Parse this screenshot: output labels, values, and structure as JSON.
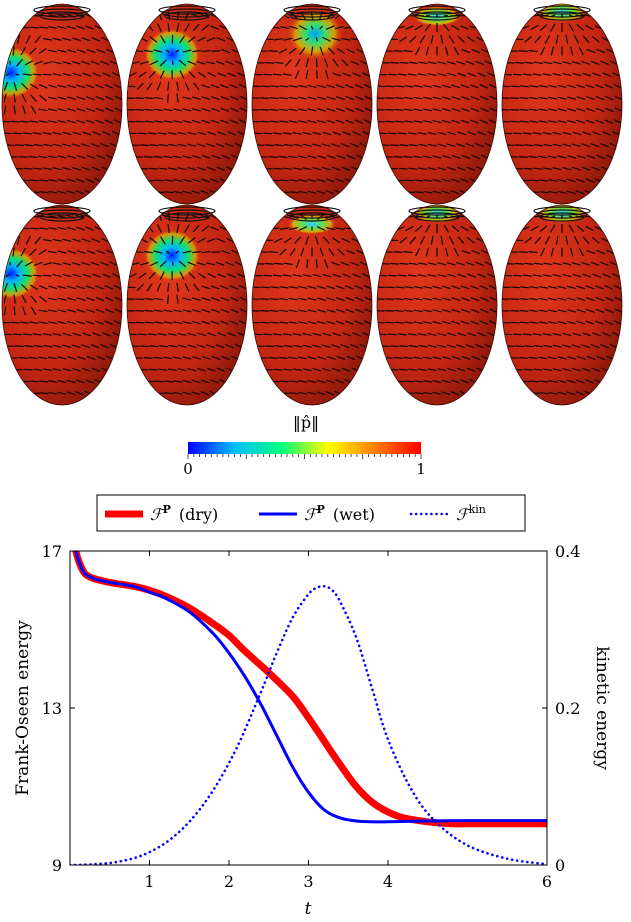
{
  "colorbar": {
    "label": "‖p̂‖",
    "min_label": "0",
    "max_label": "1",
    "colors": [
      "#0000ff",
      "#00bfff",
      "#00ff7f",
      "#ffff00",
      "#ff8000",
      "#ff0000"
    ]
  },
  "spheroid_grid": {
    "rows": 2,
    "cols": 5,
    "base_color": "#cc2a12",
    "rim_color": "#111111",
    "defects": [
      [
        {
          "lat": 0.35,
          "lon": -0.85,
          "type": "blue"
        },
        {
          "lat": 0.55,
          "lon": -0.25,
          "type": "blue"
        },
        {
          "lat": 0.78,
          "lon": 0.05,
          "type": "green"
        },
        {
          "lat": 0.97,
          "lon": 0.0,
          "type": "cap"
        },
        {
          "lat": 1.0,
          "lon": 0.0,
          "type": "cap"
        }
      ],
      [
        {
          "lat": 0.35,
          "lon": -0.85,
          "type": "blue"
        },
        {
          "lat": 0.55,
          "lon": -0.25,
          "type": "blue"
        },
        {
          "lat": 0.92,
          "lon": 0.0,
          "type": "cap"
        },
        {
          "lat": 1.0,
          "lon": 0.0,
          "type": "cap"
        },
        {
          "lat": 1.0,
          "lon": 0.0,
          "type": "cap"
        }
      ]
    ]
  },
  "chart_data": {
    "type": "line",
    "xlabel": "t",
    "ylabel_left": "Frank-Oseen energy",
    "ylabel_right": "kinetic energy",
    "xlim": [
      0,
      6
    ],
    "ylim_left": [
      9,
      17
    ],
    "ylim_right": [
      0,
      0.4
    ],
    "xticks": [
      1,
      2,
      3,
      4,
      6
    ],
    "yticks_left": [
      9,
      13,
      17
    ],
    "yticks_right": [
      0,
      0.2,
      0.4
    ],
    "legend_position": "top",
    "series": [
      {
        "name": "F^P (dry)",
        "legend_main": "ℱ",
        "legend_sup": "P",
        "legend_suffix": "(dry)",
        "axis": "left",
        "color": "#ff0000",
        "style": "solid-thick",
        "x": [
          0.0,
          0.05,
          0.1,
          0.15,
          0.2,
          0.3,
          0.5,
          0.8,
          1.0,
          1.2,
          1.5,
          1.8,
          2.0,
          2.2,
          2.5,
          2.8,
          3.0,
          3.2,
          3.4,
          3.6,
          3.8,
          4.0,
          4.2,
          4.5,
          4.8,
          5.0,
          5.5,
          6.0
        ],
        "values": [
          17.8,
          17.2,
          16.8,
          16.55,
          16.4,
          16.3,
          16.2,
          16.1,
          16.0,
          15.85,
          15.55,
          15.15,
          14.85,
          14.45,
          13.9,
          13.3,
          12.75,
          12.15,
          11.55,
          11.0,
          10.6,
          10.35,
          10.2,
          10.1,
          10.05,
          10.05,
          10.05,
          10.05
        ]
      },
      {
        "name": "F^P (wet)",
        "legend_main": "ℱ",
        "legend_sup": "P",
        "legend_suffix": "(wet)",
        "axis": "left",
        "color": "#0000ff",
        "style": "solid",
        "x": [
          0.0,
          0.05,
          0.1,
          0.15,
          0.2,
          0.3,
          0.5,
          0.8,
          1.0,
          1.2,
          1.5,
          1.8,
          2.0,
          2.2,
          2.4,
          2.6,
          2.8,
          3.0,
          3.2,
          3.4,
          3.6,
          3.8,
          4.0,
          4.5,
          5.0,
          5.5,
          6.0
        ],
        "values": [
          17.8,
          17.2,
          16.8,
          16.55,
          16.4,
          16.3,
          16.2,
          16.1,
          15.95,
          15.8,
          15.45,
          14.9,
          14.4,
          13.8,
          13.1,
          12.3,
          11.5,
          10.85,
          10.4,
          10.2,
          10.12,
          10.1,
          10.1,
          10.12,
          10.13,
          10.13,
          10.13
        ]
      },
      {
        "name": "F^kin",
        "legend_main": "ℱ",
        "legend_sup": "kin",
        "legend_suffix": "",
        "axis": "right",
        "color": "#0000ff",
        "style": "dotted",
        "x": [
          0.0,
          0.3,
          0.6,
          0.9,
          1.2,
          1.5,
          1.8,
          2.1,
          2.4,
          2.6,
          2.8,
          3.0,
          3.1,
          3.2,
          3.3,
          3.4,
          3.6,
          3.8,
          4.0,
          4.3,
          4.6,
          5.0,
          5.5,
          6.0
        ],
        "values": [
          0.0,
          0.001,
          0.004,
          0.012,
          0.028,
          0.055,
          0.095,
          0.15,
          0.22,
          0.27,
          0.315,
          0.345,
          0.353,
          0.355,
          0.35,
          0.335,
          0.29,
          0.225,
          0.16,
          0.095,
          0.055,
          0.025,
          0.008,
          0.001
        ]
      }
    ]
  }
}
